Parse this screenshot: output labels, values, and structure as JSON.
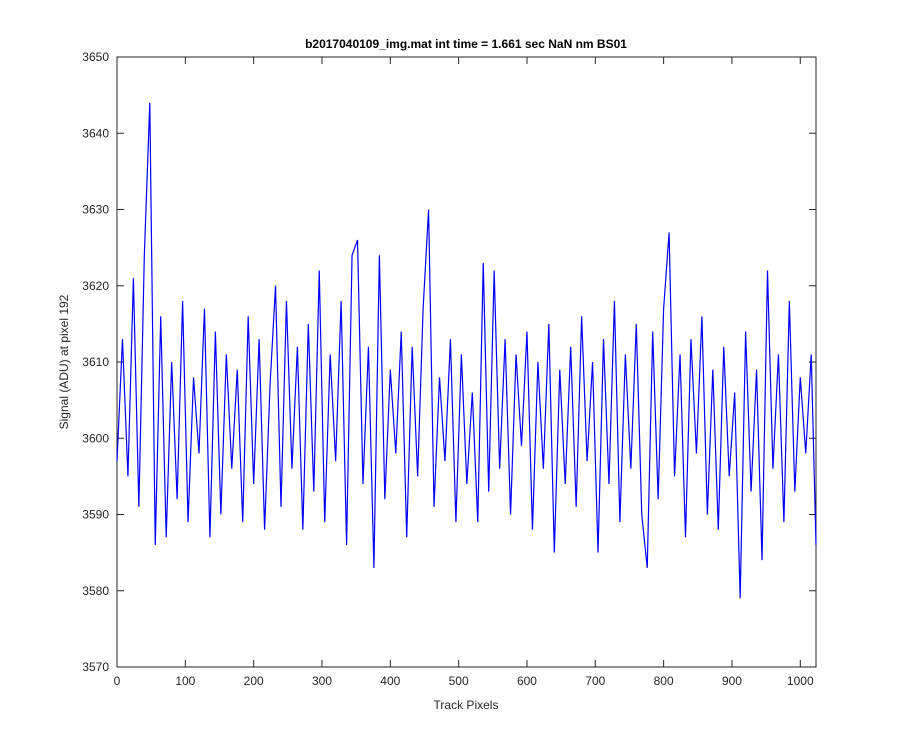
{
  "chart_data": {
    "type": "line",
    "title": "b2017040109_img.mat int time = 1.661 sec  NaN nm BS01",
    "x_label": "Track Pixels",
    "y_label": "Signal (ADU) at pixel 192",
    "x": [
      0,
      8,
      16,
      24,
      32,
      40,
      48,
      56,
      64,
      72,
      80,
      88,
      96,
      104,
      112,
      120,
      128,
      136,
      144,
      152,
      160,
      168,
      176,
      184,
      192,
      200,
      208,
      216,
      224,
      232,
      240,
      248,
      256,
      264,
      272,
      280,
      288,
      296,
      304,
      312,
      320,
      328,
      336,
      344,
      352,
      360,
      368,
      376,
      384,
      392,
      400,
      408,
      416,
      424,
      432,
      440,
      448,
      456,
      464,
      472,
      480,
      488,
      496,
      504,
      512,
      520,
      528,
      536,
      544,
      552,
      560,
      568,
      576,
      584,
      592,
      600,
      608,
      616,
      624,
      632,
      640,
      648,
      656,
      664,
      672,
      680,
      688,
      696,
      704,
      712,
      720,
      728,
      736,
      744,
      752,
      760,
      768,
      776,
      784,
      792,
      800,
      808,
      816,
      824,
      832,
      840,
      848,
      856,
      864,
      872,
      880,
      888,
      896,
      904,
      912,
      920,
      928,
      936,
      944,
      952,
      960,
      968,
      976,
      984,
      992,
      1000,
      1008,
      1016,
      1023
    ],
    "series": [
      {
        "name": "signal",
        "color": "#0000ff",
        "values": [
          3597,
          3613,
          3595,
          3621,
          3591,
          3624,
          3644,
          3586,
          3616,
          3587,
          3610,
          3592,
          3618,
          3589,
          3608,
          3598,
          3617,
          3587,
          3614,
          3590,
          3611,
          3596,
          3609,
          3589,
          3616,
          3594,
          3613,
          3588,
          3607,
          3620,
          3591,
          3618,
          3596,
          3612,
          3588,
          3615,
          3593,
          3622,
          3589,
          3611,
          3597,
          3618,
          3586,
          3624,
          3626,
          3594,
          3612,
          3583,
          3624,
          3592,
          3609,
          3598,
          3614,
          3587,
          3612,
          3595,
          3617,
          3630,
          3591,
          3608,
          3597,
          3613,
          3589,
          3611,
          3594,
          3606,
          3589,
          3623,
          3593,
          3622,
          3596,
          3613,
          3590,
          3611,
          3599,
          3614,
          3588,
          3610,
          3596,
          3615,
          3585,
          3609,
          3594,
          3612,
          3591,
          3616,
          3597,
          3610,
          3585,
          3613,
          3594,
          3618,
          3589,
          3611,
          3596,
          3615,
          3590,
          3583,
          3614,
          3592,
          3617,
          3627,
          3595,
          3611,
          3587,
          3613,
          3598,
          3616,
          3590,
          3609,
          3588,
          3612,
          3595,
          3606,
          3579,
          3614,
          3593,
          3609,
          3584,
          3622,
          3596,
          3611,
          3589,
          3618,
          3593,
          3608,
          3598,
          3611,
          3586
        ]
      }
    ],
    "xlim": [
      0,
      1023
    ],
    "ylim": [
      3570,
      3650
    ],
    "xticks": [
      0,
      100,
      200,
      300,
      400,
      500,
      600,
      700,
      800,
      900,
      1000
    ],
    "yticks": [
      3570,
      3580,
      3590,
      3600,
      3610,
      3620,
      3630,
      3640,
      3650
    ]
  }
}
